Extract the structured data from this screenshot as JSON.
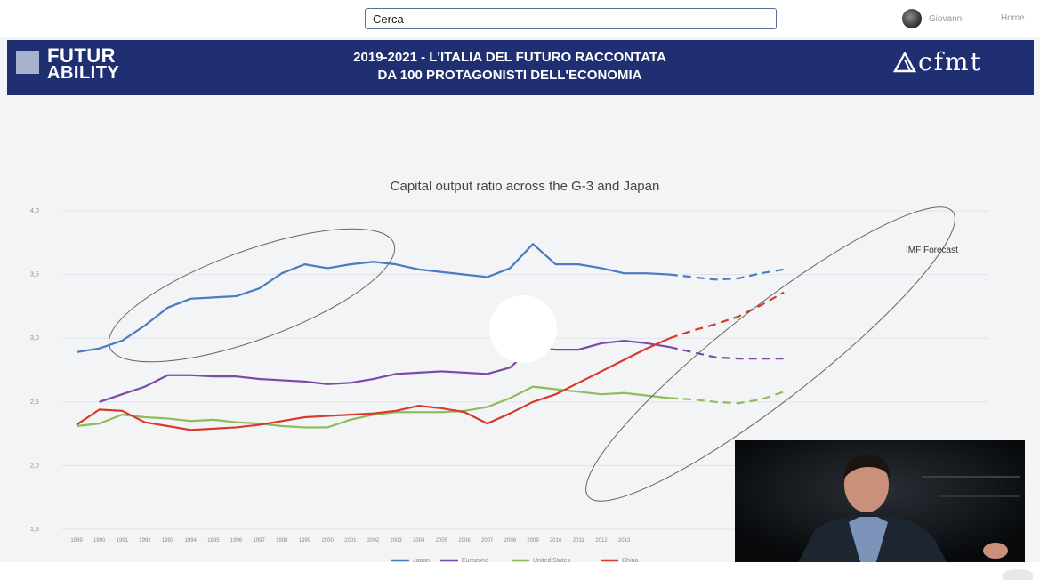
{
  "topbar": {
    "search_value": "Cerca",
    "username": "Giovanni",
    "home_label": "Home"
  },
  "banner": {
    "logo_line1": "FUTUR",
    "logo_line2": "ABILITY",
    "title_line1": "2019-2021 - L'ITALIA DEL FUTURO RACCONTATA",
    "title_line2": "DA 100 PROTAGONISTI DELL'ECONOMIA",
    "brand": "cfmt",
    "color": "#1f2f72"
  },
  "chart_data": {
    "type": "line",
    "title": "Capital output ratio across the G-3 and Japan",
    "annotation": "IMF Forecast",
    "ylim": [
      1.5,
      4.0
    ],
    "yticks": [
      "1,5",
      "2,0",
      "2,5",
      "3,0",
      "3,5",
      "4,0"
    ],
    "x": [
      "1989",
      "1990",
      "1991",
      "1992",
      "1993",
      "1994",
      "1995",
      "1996",
      "1997",
      "1998",
      "1999",
      "2000",
      "2001",
      "2002",
      "2003",
      "2004",
      "2005",
      "2006",
      "2007",
      "2008",
      "2009",
      "2010",
      "2011",
      "2012",
      "2013",
      "2014",
      "2015",
      "2016",
      "2017",
      "2018",
      "2019",
      "2020"
    ],
    "forecast_start": "2015",
    "grid": true,
    "legend_position": "bottom",
    "series": [
      {
        "name": "Japan",
        "color": "#4a7cc0",
        "values": [
          2.89,
          2.92,
          2.98,
          3.1,
          3.24,
          3.31,
          3.32,
          3.33,
          3.39,
          3.51,
          3.58,
          3.55,
          3.58,
          3.6,
          3.58,
          3.54,
          3.52,
          3.5,
          3.48,
          3.55,
          3.74,
          3.58,
          3.58,
          3.55,
          3.51,
          3.51,
          3.5,
          3.48,
          3.46,
          3.47,
          3.51,
          3.54
        ]
      },
      {
        "name": "Eurozone",
        "color": "#7a4aa8",
        "values": [
          null,
          2.5,
          2.56,
          2.62,
          2.71,
          2.71,
          2.7,
          2.7,
          2.68,
          2.67,
          2.66,
          2.64,
          2.65,
          2.68,
          2.72,
          2.73,
          2.74,
          2.73,
          2.72,
          2.77,
          2.93,
          2.91,
          2.91,
          2.96,
          2.98,
          2.96,
          2.93,
          2.89,
          2.85,
          2.84,
          2.84,
          2.84
        ]
      },
      {
        "name": "United States",
        "color": "#8dbd5a",
        "values": [
          2.31,
          2.33,
          2.4,
          2.38,
          2.37,
          2.35,
          2.36,
          2.34,
          2.33,
          2.31,
          2.3,
          2.3,
          2.36,
          2.4,
          2.42,
          2.42,
          2.42,
          2.43,
          2.46,
          2.53,
          2.62,
          2.6,
          2.58,
          2.56,
          2.57,
          2.55,
          2.53,
          2.52,
          2.5,
          2.49,
          2.52,
          2.58
        ]
      },
      {
        "name": "China",
        "color": "#d8392c",
        "values": [
          2.32,
          2.44,
          2.43,
          2.34,
          2.31,
          2.28,
          2.29,
          2.3,
          2.32,
          2.35,
          2.38,
          2.39,
          2.4,
          2.41,
          2.43,
          2.47,
          2.45,
          2.42,
          2.33,
          2.41,
          2.5,
          2.56,
          2.65,
          2.74,
          2.83,
          2.92,
          3.0,
          3.06,
          3.11,
          3.17,
          3.26,
          3.36
        ]
      }
    ]
  }
}
